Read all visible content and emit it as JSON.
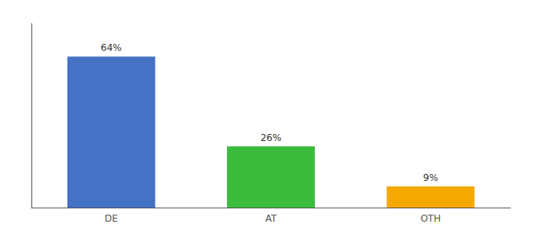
{
  "chart_data": {
    "type": "bar",
    "categories": [
      "DE",
      "AT",
      "OTH"
    ],
    "values": [
      64,
      26,
      9
    ],
    "value_labels": [
      "64%",
      "26%",
      "9%"
    ],
    "colors": [
      "#4472c4",
      "#3dbb3d",
      "#f5a800"
    ],
    "ylim": [
      0,
      78
    ],
    "tick_labels": "x",
    "grid": false
  }
}
